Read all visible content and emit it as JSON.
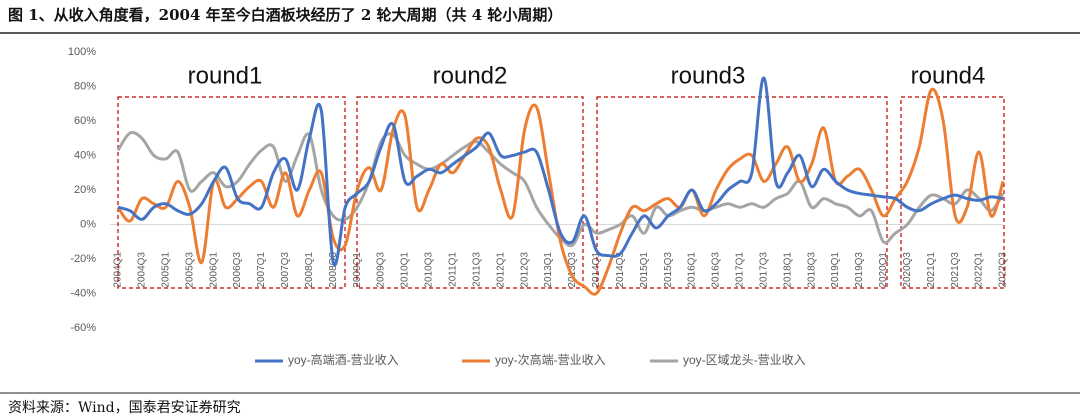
{
  "chart_data": {
    "type": "line",
    "title": "图 1、从收入角度看，2004 年至今白酒板块经历了 2 轮大周期（共 4 轮小周期）",
    "source": "资料来源：Wind，国泰君安证券研究",
    "annotations": [
      "round1",
      "round2",
      "round3",
      "round4"
    ],
    "categories": [
      "2004Q1",
      null,
      "2004Q3",
      null,
      "2005Q1",
      null,
      "2005Q3",
      null,
      "2006Q1",
      null,
      "2006Q3",
      null,
      "2007Q1",
      null,
      "2007Q3",
      null,
      "2008Q1",
      null,
      "2008Q3",
      null,
      "2009Q1",
      null,
      "2009Q3",
      null,
      "2010Q1",
      null,
      "2010Q3",
      null,
      "2011Q1",
      null,
      "2011Q3",
      null,
      "2012Q1",
      null,
      "2012Q3",
      null,
      "2013Q1",
      null,
      "2013Q3",
      null,
      "2014Q1",
      null,
      "2014Q3",
      null,
      "2015Q1",
      null,
      "2015Q3",
      null,
      "2016Q1",
      null,
      "2016Q3",
      null,
      "2017Q1",
      null,
      "2017Q3",
      null,
      "2018Q1",
      null,
      "2018Q3",
      null,
      "2019Q1",
      null,
      "2019Q3",
      null,
      "2020Q1",
      null,
      "2020Q3",
      null,
      "2021Q1",
      null,
      "2021Q3",
      null,
      "2022Q1",
      null,
      "2022Q3"
    ],
    "series": [
      {
        "name": "yoy-高端酒-营业收入",
        "color": "#4472c4",
        "values": [
          10,
          8,
          3,
          10,
          12,
          8,
          6,
          12,
          25,
          33,
          15,
          12,
          10,
          30,
          38,
          20,
          50,
          66,
          -22,
          10,
          18,
          25,
          45,
          58,
          25,
          28,
          32,
          30,
          35,
          40,
          45,
          53,
          40,
          40,
          42,
          42,
          20,
          -5,
          -10,
          5,
          -15,
          -18,
          -17,
          -5,
          5,
          -2,
          5,
          10,
          20,
          8,
          12,
          20,
          25,
          30,
          85,
          25,
          30,
          40,
          22,
          32,
          25,
          20,
          18,
          17,
          16,
          15,
          10,
          8,
          12,
          15,
          17,
          15,
          14,
          16,
          15
        ]
      },
      {
        "name": "yoy-次高端-营业收入",
        "color": "#ed7d31",
        "values": [
          10,
          2,
          15,
          12,
          10,
          25,
          10,
          -22,
          25,
          10,
          15,
          22,
          25,
          10,
          30,
          5,
          20,
          30,
          -8,
          -12,
          20,
          33,
          20,
          55,
          63,
          10,
          20,
          35,
          30,
          40,
          50,
          45,
          20,
          5,
          55,
          68,
          30,
          -10,
          -30,
          -36,
          -40,
          -25,
          -5,
          10,
          8,
          12,
          15,
          10,
          20,
          5,
          20,
          32,
          38,
          40,
          25,
          35,
          45,
          25,
          35,
          56,
          25,
          28,
          32,
          20,
          5,
          15,
          25,
          45,
          78,
          60,
          5,
          10,
          42,
          5,
          25
        ]
      },
      {
        "name": "yoy-区域龙头-营业收入",
        "color": "#a5a5a5",
        "values": [
          43,
          53,
          50,
          40,
          38,
          42,
          20,
          25,
          30,
          22,
          25,
          35,
          43,
          45,
          25,
          40,
          52,
          20,
          5,
          3,
          10,
          25,
          48,
          52,
          40,
          35,
          32,
          35,
          40,
          45,
          48,
          42,
          35,
          30,
          25,
          10,
          0,
          -8,
          -12,
          0,
          -5,
          -3,
          0,
          5,
          -5,
          10,
          5,
          8,
          10,
          8,
          10,
          12,
          10,
          12,
          10,
          15,
          18,
          25,
          10,
          15,
          12,
          10,
          5,
          8,
          -10,
          -5,
          0,
          10,
          17,
          15,
          12,
          20,
          15,
          8,
          18
        ]
      }
    ],
    "ylim": [
      -60,
      100
    ],
    "yticks": [
      {
        "value": -60,
        "label": "-60%"
      },
      {
        "value": -40,
        "label": "-40%"
      },
      {
        "value": -20,
        "label": "-20%"
      },
      {
        "value": 0,
        "label": "0%"
      },
      {
        "value": 20,
        "label": "20%"
      },
      {
        "value": 40,
        "label": "40%"
      },
      {
        "value": 60,
        "label": "60%"
      },
      {
        "value": 80,
        "label": "80%"
      },
      {
        "value": 100,
        "label": "100%"
      }
    ],
    "grid": false,
    "legend": "bottom"
  }
}
